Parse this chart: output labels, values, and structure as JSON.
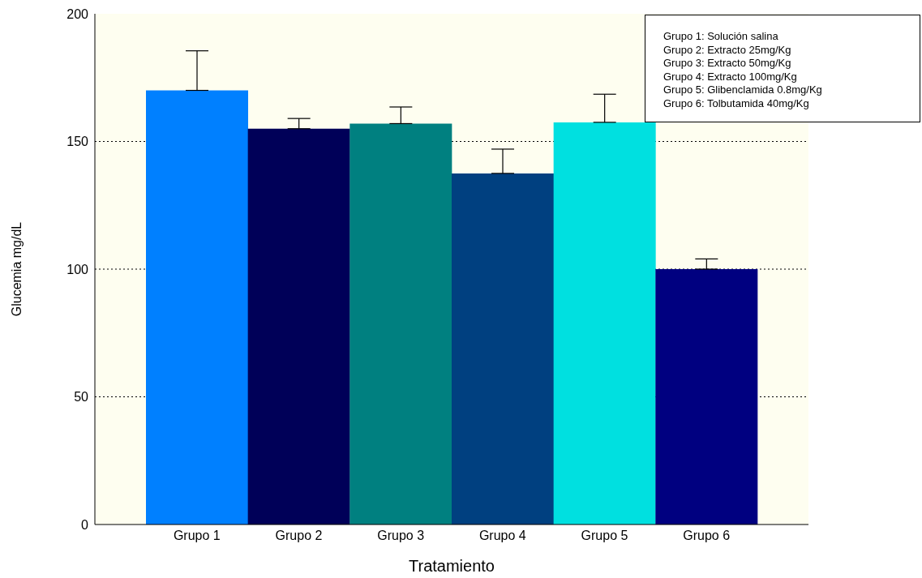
{
  "chart_data": {
    "type": "bar",
    "xlabel": "Tratamiento",
    "ylabel": "Glucemia mg/dL",
    "categories": [
      "Grupo 1",
      "Grupo 2",
      "Grupo 3",
      "Grupo 4",
      "Grupo 5",
      "Grupo 6"
    ],
    "values": [
      170,
      155,
      157,
      137.5,
      157.5,
      100
    ],
    "colors": [
      "#0080ff",
      "#000058",
      "#008080",
      "#004080",
      "#00e0e0",
      "#000080"
    ],
    "errors": [
      [
        170,
        185.5
      ],
      [
        155,
        159
      ],
      [
        157,
        163.5
      ],
      [
        137.5,
        147
      ],
      [
        157.5,
        168.5
      ],
      [
        100,
        104
      ]
    ],
    "ylim": [
      0,
      200
    ],
    "yticks": [
      0,
      50,
      100,
      150,
      200
    ],
    "grid": "y",
    "annotations": [
      "Grupo 1: Solución salina",
      "Grupo 2: Extracto 25mg/Kg",
      "Grupo 3: Extracto 50mg/Kg",
      "Grupo 4: Extracto 100mg/Kg",
      "Grupo 5: Glibenclamida 0.8mg/Kg",
      "Grupo 6: Tolbutamida 40mg/Kg"
    ]
  }
}
